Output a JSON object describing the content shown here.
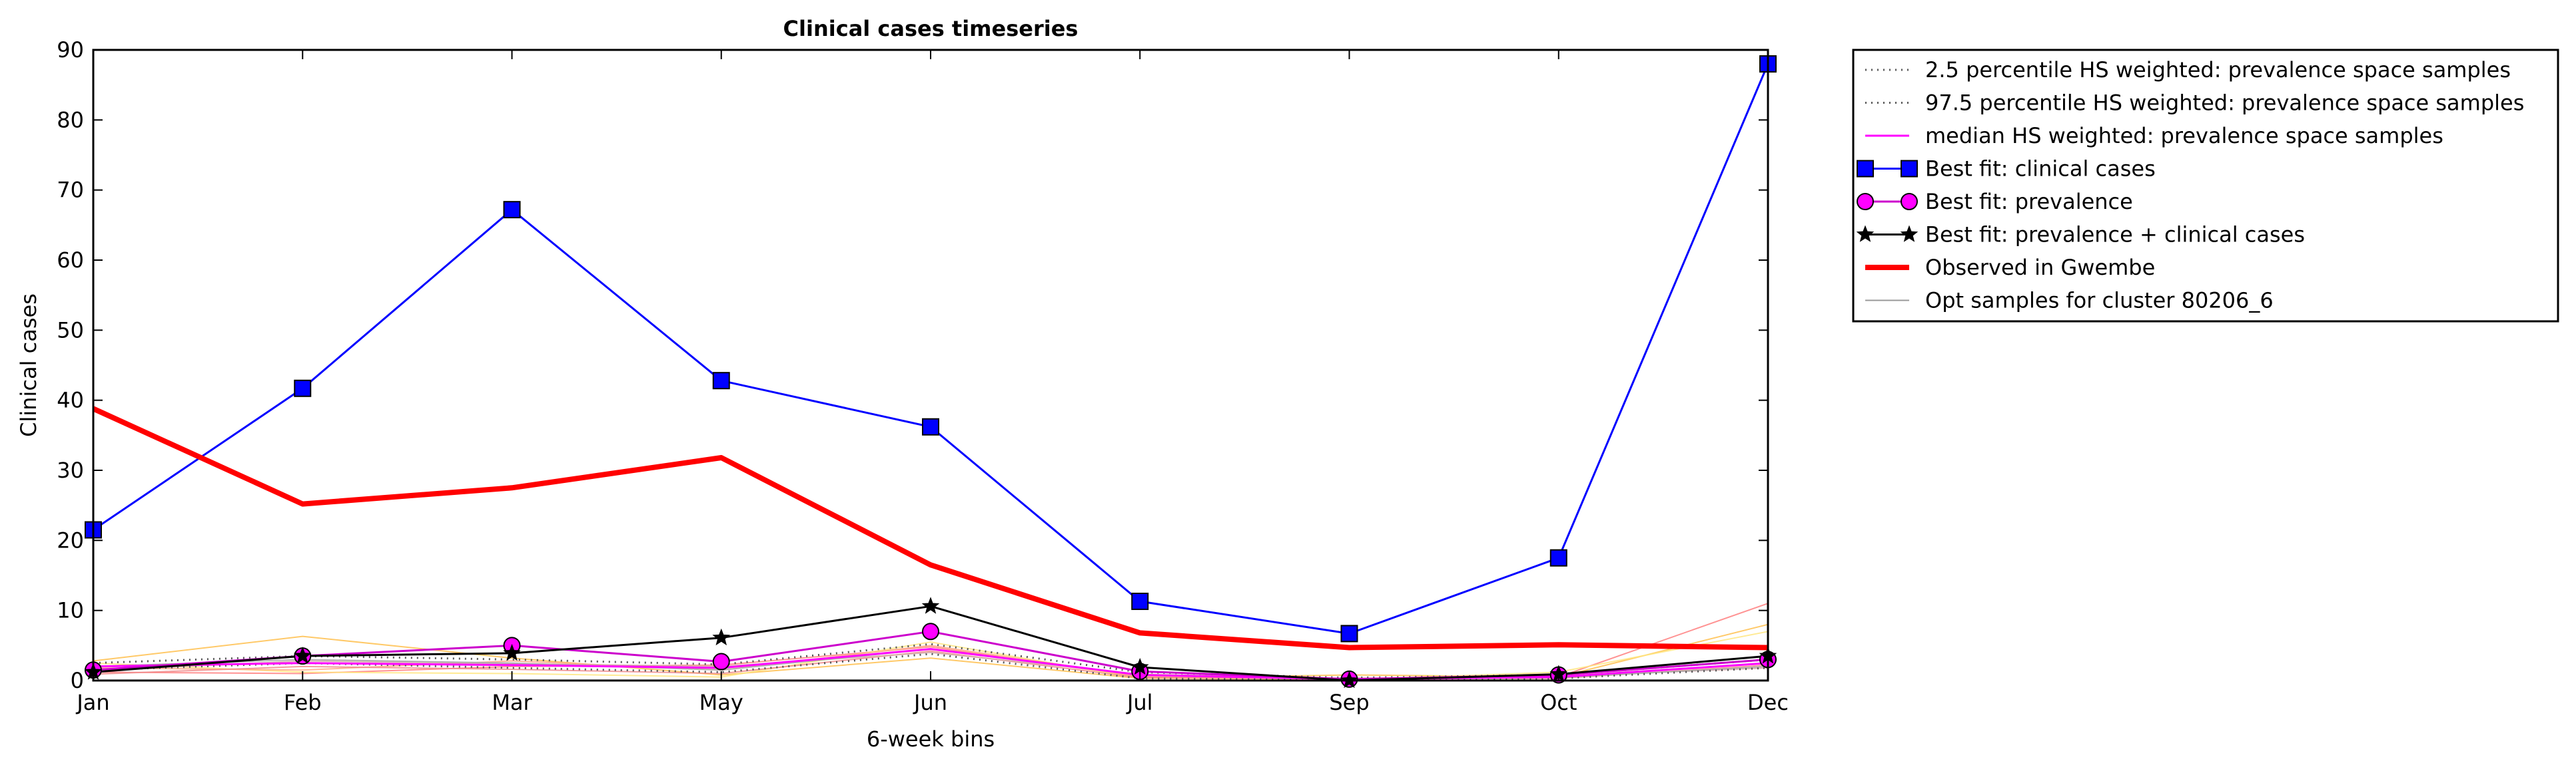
{
  "chart_data": {
    "type": "line",
    "title": "Clinical cases timeseries",
    "xlabel": "6-week bins",
    "ylabel": "Clinical cases",
    "categories": [
      "Jan",
      "Feb",
      "Mar",
      "May",
      "Jun",
      "Jul",
      "Sep",
      "Oct",
      "Dec"
    ],
    "ylim": [
      0,
      90
    ],
    "yticks": [
      0,
      10,
      20,
      30,
      40,
      50,
      60,
      70,
      80,
      90
    ],
    "grid": false,
    "legend_position": "outside-right",
    "series": [
      {
        "name": "2.5 percentile HS weighted: prevalence space samples",
        "color": "#555555",
        "style": "dotted",
        "values": [
          1.5,
          2.5,
          1.8,
          1.2,
          3.8,
          0.3,
          0.1,
          0.3,
          1.8
        ]
      },
      {
        "name": "97.5 percentile HS weighted: prevalence space samples",
        "color": "#555555",
        "style": "dotted",
        "values": [
          2.5,
          3.5,
          3.0,
          2.3,
          5.2,
          1.2,
          0.4,
          0.8,
          3.0
        ]
      },
      {
        "name": "median HS weighted: prevalence space samples",
        "color": "#ff00ff",
        "style": "solid",
        "values": [
          2.0,
          2.5,
          2.2,
          1.8,
          4.5,
          0.8,
          0.2,
          0.5,
          2.5
        ]
      },
      {
        "name": "Best fit: clinical cases",
        "color": "#0000ff",
        "style": "solid",
        "marker": "square",
        "values": [
          21.5,
          41.7,
          67.2,
          42.8,
          36.2,
          11.3,
          6.7,
          17.5,
          88.0
        ]
      },
      {
        "name": "Best fit: prevalence",
        "color": "#cc00cc",
        "style": "solid",
        "marker": "circle",
        "values": [
          1.5,
          3.5,
          5.0,
          2.7,
          7.0,
          1.3,
          0.2,
          0.8,
          3.0
        ]
      },
      {
        "name": "Best fit: prevalence + clinical cases",
        "color": "#000000",
        "style": "solid",
        "marker": "star",
        "values": [
          1.2,
          3.5,
          3.9,
          6.1,
          10.6,
          1.9,
          0.0,
          0.9,
          3.5
        ]
      },
      {
        "name": "Observed in Gwembe",
        "color": "#ff0000",
        "style": "thick",
        "values": [
          38.8,
          25.2,
          27.5,
          31.8,
          16.5,
          6.8,
          4.7,
          5.1,
          4.7
        ]
      },
      {
        "name": "Opt samples for cluster 80206_6",
        "color": "#aaaaaa",
        "style": "thin",
        "values": [
          2.0,
          3.0,
          2.5,
          1.5,
          4.5,
          0.8,
          0.2,
          0.4,
          2.0
        ]
      }
    ],
    "sample_lines": [
      {
        "color": "#ffc04d",
        "values": [
          2.8,
          6.3,
          3.2,
          0.8,
          3.2,
          0.3,
          0.8,
          0.5,
          8.0
        ]
      },
      {
        "color": "#ff7f7f",
        "values": [
          1.2,
          1.0,
          2.0,
          2.2,
          4.8,
          0.5,
          0.2,
          0.5,
          11.0
        ]
      },
      {
        "color": "#ffe680",
        "values": [
          2.5,
          1.2,
          1.0,
          0.5,
          5.5,
          0.3,
          0.1,
          1.2,
          7.0
        ]
      },
      {
        "color": "#ffaa88",
        "values": [
          1.8,
          1.5,
          2.8,
          1.5,
          5.0,
          0.6,
          0.3,
          0.6,
          2.5
        ]
      },
      {
        "color": "#f08c8c",
        "values": [
          0.9,
          2.0,
          1.6,
          1.0,
          4.2,
          0.4,
          0.2,
          0.3,
          2.2
        ]
      },
      {
        "color": "#d4a8a8",
        "values": [
          1.4,
          2.8,
          2.4,
          2.0,
          4.0,
          0.9,
          0.3,
          0.6,
          1.8
        ]
      }
    ]
  }
}
